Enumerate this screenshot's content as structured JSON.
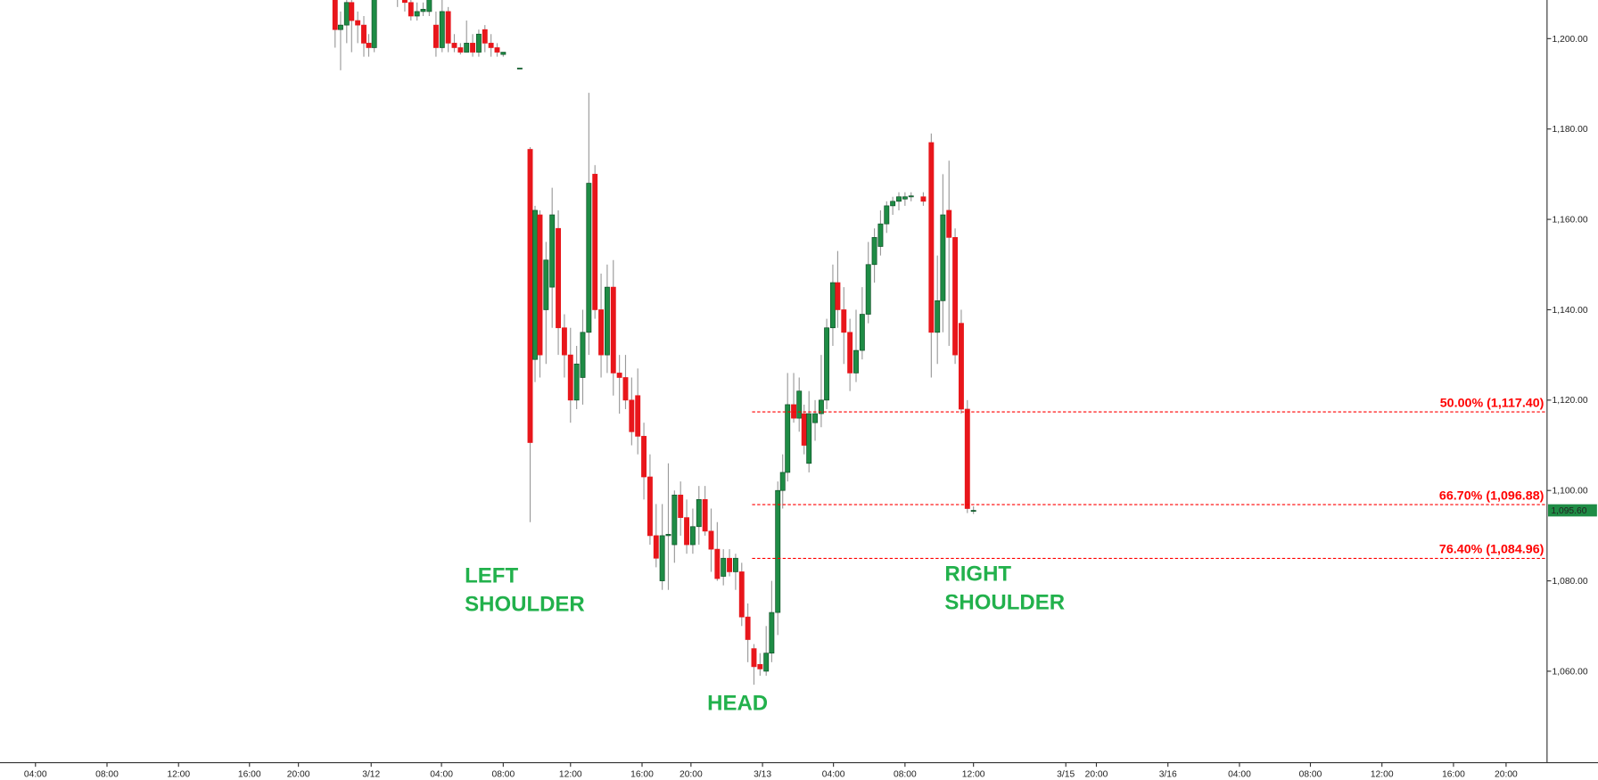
{
  "chart_data": {
    "type": "candlestick",
    "x": [
      54.8,
      55.7,
      56.7,
      57.5,
      58.5,
      59.5,
      60.3,
      61.2,
      65,
      66.2,
      67.2,
      68.2,
      69.2,
      70.2,
      71.3,
      72.3,
      73.3,
      74.3,
      75.3,
      76.3,
      77.3,
      78.3,
      79.3,
      80.3,
      81.3,
      82.3,
      85,
      86.7,
      87.5,
      88.3,
      89.3,
      90.3,
      91.3,
      92.3,
      93.3,
      94.3,
      95.3,
      96.3,
      97.3,
      98.3,
      99.3,
      100.3,
      101.3,
      102.3,
      103.3,
      104.3,
      105.3,
      106.3,
      107.3,
      108.3,
      109.3,
      110.3,
      111.3,
      112.3,
      113.3,
      114.3,
      115.3,
      116.3,
      117.3,
      118.3,
      119.3,
      120.3,
      121.3,
      122.3,
      123.3,
      124.3,
      125.3,
      126.2,
      127.2,
      128,
      128.8,
      129.8,
      130.7,
      131.5,
      132.3,
      133.3,
      134.3,
      135.2,
      136.2,
      137,
      138,
      139,
      140,
      141,
      142,
      143,
      144,
      145,
      146,
      147,
      148,
      149,
      151,
      152.3,
      153.3,
      154.2,
      155.2,
      156.2,
      157.2,
      158.2,
      159.2
    ],
    "open": [
      1210,
      1202,
      1203,
      1208,
      1204,
      1203,
      1199,
      1198,
      1210,
      1209,
      1208,
      1205,
      1206,
      1206,
      1203,
      1198,
      1206,
      1199,
      1198,
      1197,
      1199,
      1197,
      1202,
      1199,
      1198,
      1196.5,
      1193.5,
      1175.5,
      1129,
      1161,
      1140,
      1145,
      1158,
      1136,
      1130,
      1120,
      1125,
      1135,
      1170,
      1140,
      1130,
      1145,
      1126,
      1125,
      1120,
      1121,
      1112,
      1103,
      1090,
      1080,
      1090,
      1088,
      1099,
      1094,
      1088,
      1092,
      1098,
      1091,
      1087,
      1081,
      1085,
      1082,
      1082,
      1072,
      1065,
      1061.5,
      1060,
      1064,
      1073,
      1100,
      1104,
      1119,
      1116,
      1117,
      1106,
      1115,
      1117,
      1120,
      1136,
      1146,
      1140,
      1135,
      1126,
      1131,
      1139,
      1150,
      1154,
      1159,
      1163,
      1164,
      1164.5,
      1165,
      1165,
      1177,
      1135,
      1142,
      1162,
      1156,
      1137,
      1118,
      1095.5
    ],
    "high": [
      1212,
      1206,
      1210,
      1212,
      1206,
      1205,
      1201,
      1212,
      1212,
      1210,
      1210,
      1208,
      1208,
      1212,
      1206,
      1209,
      1207,
      1201,
      1199,
      1204,
      1201,
      1202,
      1203,
      1201,
      1199,
      1197,
      1193.5,
      1176,
      1163,
      1162,
      1155,
      1167,
      1162,
      1139,
      1136,
      1132,
      1140,
      1188,
      1172,
      1148,
      1150,
      1151,
      1130,
      1130,
      1125,
      1127,
      1115,
      1108,
      1097,
      1097,
      1106,
      1100,
      1102,
      1098,
      1096,
      1101,
      1101,
      1096,
      1093,
      1087,
      1087,
      1086,
      1084,
      1075,
      1066,
      1064,
      1070,
      1080,
      1102,
      1108,
      1126,
      1126,
      1125,
      1119,
      1122,
      1120,
      1130,
      1138,
      1150,
      1153,
      1145,
      1138,
      1140,
      1145,
      1155,
      1158,
      1162,
      1164,
      1165,
      1166,
      1166,
      1166,
      1166,
      1179,
      1152,
      1170,
      1173,
      1158,
      1140,
      1120,
      1096.5
    ],
    "low": [
      1198,
      1193,
      1199,
      1197,
      1199,
      1196,
      1196,
      1197,
      1207,
      1206,
      1204,
      1204,
      1205,
      1205,
      1196,
      1197,
      1197,
      1197,
      1196.5,
      1197,
      1196,
      1196,
      1197,
      1196,
      1196,
      1196,
      1193.5,
      1093,
      1124,
      1125,
      1128,
      1136,
      1130,
      1125,
      1115,
      1118,
      1119,
      1130,
      1138,
      1125,
      1126,
      1121,
      1117,
      1118,
      1110,
      1108,
      1098,
      1088,
      1083,
      1078,
      1078,
      1084,
      1090,
      1086,
      1086,
      1088,
      1090,
      1082,
      1080,
      1079,
      1081,
      1078,
      1070,
      1062,
      1057,
      1059,
      1059,
      1062,
      1068,
      1096,
      1102,
      1115,
      1113,
      1108,
      1104,
      1111,
      1114,
      1118,
      1132,
      1136,
      1128,
      1122,
      1124,
      1129,
      1137,
      1146,
      1152,
      1157,
      1161,
      1162,
      1163,
      1164,
      1163,
      1125,
      1128,
      1135,
      1132,
      1128,
      1117,
      1095,
      1094.8
    ],
    "close": [
      1202,
      1203,
      1208,
      1204,
      1203,
      1199,
      1198,
      1210,
      1209,
      1208,
      1205,
      1206,
      1206.5,
      1210,
      1198,
      1206,
      1199,
      1198,
      1197,
      1199,
      1197,
      1201,
      1199,
      1198,
      1197,
      1197,
      1193.5,
      1110.6,
      1162,
      1130,
      1151,
      1161,
      1136,
      1130,
      1120,
      1128,
      1135,
      1168,
      1140,
      1130,
      1145,
      1126,
      1125,
      1120,
      1113,
      1112,
      1103,
      1090,
      1085,
      1090,
      1090.3,
      1099,
      1094,
      1088,
      1092,
      1098,
      1091,
      1087,
      1080.5,
      1085,
      1082,
      1085,
      1072,
      1067,
      1061,
      1060.5,
      1064,
      1073,
      1100,
      1104,
      1119,
      1116,
      1122,
      1110,
      1117,
      1117,
      1120,
      1136,
      1146,
      1140,
      1135,
      1126,
      1131,
      1139,
      1150,
      1156,
      1159,
      1163,
      1164,
      1165,
      1165,
      1165.2,
      1164,
      1135,
      1142,
      1161,
      1156,
      1130,
      1118,
      1096,
      1095.6
    ],
    "up_color": "#1e8c45",
    "down_color": "#e8161b",
    "xlim": [
      0,
      253
    ],
    "ylim": [
      1039.75,
      1208.55
    ],
    "xticks": [
      {
        "value": 5.8,
        "label": "04:00"
      },
      {
        "value": 17.5,
        "label": "08:00"
      },
      {
        "value": 29.2,
        "label": "12:00"
      },
      {
        "value": 40.8,
        "label": "16:00"
      },
      {
        "value": 48.8,
        "label": "20:00"
      },
      {
        "value": 60.7,
        "label": "3/12"
      },
      {
        "value": 72.2,
        "label": "04:00"
      },
      {
        "value": 82.3,
        "label": "08:00"
      },
      {
        "value": 93.3,
        "label": "12:00"
      },
      {
        "value": 105,
        "label": "16:00"
      },
      {
        "value": 113,
        "label": "20:00"
      },
      {
        "value": 124.7,
        "label": "3/13"
      },
      {
        "value": 136.3,
        "label": "04:00"
      },
      {
        "value": 148,
        "label": "08:00"
      },
      {
        "value": 159.2,
        "label": "12:00"
      },
      {
        "value": 174.3,
        "label": "3/15"
      },
      {
        "value": 179.3,
        "label": "20:00"
      },
      {
        "value": 191,
        "label": "3/16"
      },
      {
        "value": 202.7,
        "label": "04:00"
      },
      {
        "value": 214.3,
        "label": "08:00"
      },
      {
        "value": 226,
        "label": "12:00"
      },
      {
        "value": 237.7,
        "label": "16:00"
      },
      {
        "value": 246.3,
        "label": "20:00"
      }
    ],
    "yticks": [
      {
        "value": 1060,
        "label": "1,060.00"
      },
      {
        "value": 1080,
        "label": "1,080.00"
      },
      {
        "value": 1100,
        "label": "1,100.00"
      },
      {
        "value": 1120,
        "label": "1,120.00"
      },
      {
        "value": 1140,
        "label": "1,140.00"
      },
      {
        "value": 1160,
        "label": "1,160.00"
      },
      {
        "value": 1180,
        "label": "1,180.00"
      },
      {
        "value": 1200,
        "label": "1,200.00"
      }
    ],
    "levels_color": "#ff0000",
    "levels": [
      {
        "label": "50.00% (1,117.40)",
        "value": 1117.4,
        "x": 123
      },
      {
        "label": "66.70% (1,096.88)",
        "value": 1096.88,
        "x": 123
      },
      {
        "label": "76.40% (1,084.96)",
        "value": 1084.96,
        "x": 123
      }
    ],
    "last_price": {
      "value": 1095.6,
      "label": "1,095.60",
      "color": "#1e8c45"
    },
    "pattern_color": "#22b14c",
    "pattern_labels": [
      [
        "LEFT",
        "SHOULDER"
      ],
      [
        "HEAD"
      ],
      [
        "RIGHT",
        "SHOULDER"
      ]
    ]
  }
}
